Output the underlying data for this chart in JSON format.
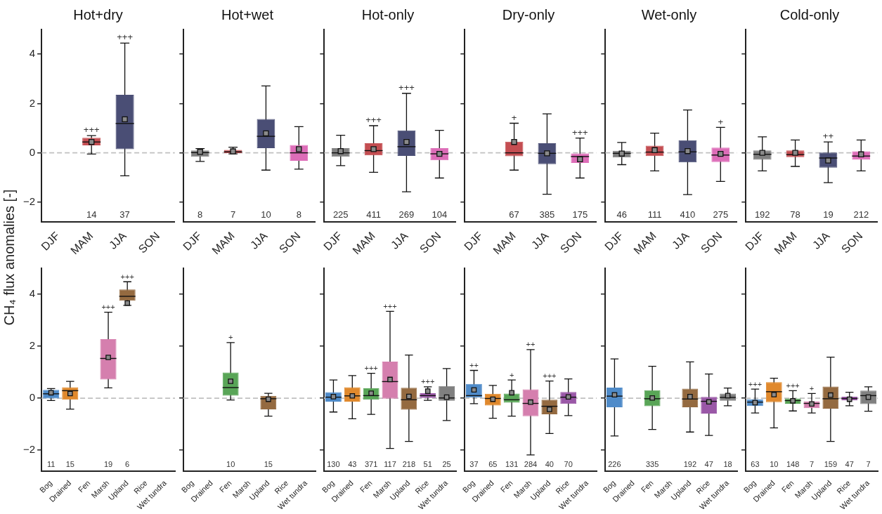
{
  "chart_data": [
    {
      "type": "box",
      "title": "Hot+dry",
      "ylabel": "CH₄ flux anomalies [-]",
      "categories": [
        "DJF",
        "MAM",
        "JJA",
        "SON"
      ],
      "colors": [
        null,
        "#c44e52",
        "#4a4e75",
        null
      ],
      "boxes": [
        null,
        {
          "low": -0.05,
          "q1": 0.3,
          "median": 0.44,
          "q3": 0.61,
          "high": 0.7,
          "mean": 0.44
        },
        {
          "low": -0.93,
          "q1": 0.15,
          "median": 1.19,
          "q3": 2.35,
          "high": 4.45,
          "mean": 1.36
        },
        null
      ],
      "value_labels": [
        null,
        "14",
        "37",
        null
      ],
      "marker": "square",
      "ylim": [
        -2.8,
        5
      ],
      "yticks": [
        -2,
        0,
        2,
        4
      ],
      "grid": false,
      "ref_lines": [
        {
          "axis": "y",
          "value": 0,
          "color": "#c0c0c0",
          "line_style": "dashed"
        }
      ],
      "annotations": [
        {
          "text": "+++",
          "x": "MAM",
          "y": 0.7
        },
        {
          "text": "+++",
          "x": "JJA",
          "y": 4.45
        }
      ]
    },
    {
      "type": "box",
      "title": "Hot+wet",
      "categories": [
        "DJF",
        "MAM",
        "JJA",
        "SON"
      ],
      "colors": [
        "#808080",
        "#c44e52",
        "#4a4e75",
        "#dd6db8"
      ],
      "boxes": [
        {
          "low": -0.35,
          "q1": -0.16,
          "median": 0.01,
          "q3": 0.1,
          "high": 0.17,
          "mean": 0.04
        },
        {
          "low": -0.04,
          "q1": -0.01,
          "median": 0.04,
          "q3": 0.12,
          "high": 0.23,
          "mean": 0.06
        },
        {
          "low": -0.7,
          "q1": 0.19,
          "median": 0.67,
          "q3": 1.37,
          "high": 2.71,
          "mean": 0.79
        },
        {
          "low": -0.66,
          "q1": -0.32,
          "median": 0,
          "q3": 0.32,
          "high": 1.06,
          "mean": 0.15
        }
      ],
      "value_labels": [
        "8",
        "7",
        "10",
        "8"
      ],
      "marker": "square",
      "ylim": [
        -2.8,
        5
      ],
      "yticks": [
        -2,
        0,
        2,
        4
      ],
      "grid": false,
      "tick_labels": "x",
      "ref_lines": [
        {
          "axis": "y",
          "value": 0,
          "color": "#c0c0c0",
          "line_style": "dashed"
        }
      ]
    },
    {
      "type": "box",
      "title": "Hot-only",
      "categories": [
        "DJF",
        "MAM",
        "JJA",
        "SON"
      ],
      "colors": [
        "#808080",
        "#c44e52",
        "#4a4e75",
        "#dd6db8"
      ],
      "boxes": [
        {
          "low": -0.52,
          "q1": -0.16,
          "median": 0,
          "q3": 0.19,
          "high": 0.71,
          "mean": 0.07
        },
        {
          "low": -0.79,
          "q1": -0.1,
          "median": 0.09,
          "q3": 0.39,
          "high": 1.1,
          "mean": 0.15
        },
        {
          "low": -1.58,
          "q1": -0.12,
          "median": 0.25,
          "q3": 0.91,
          "high": 2.41,
          "mean": 0.44
        },
        {
          "low": -1.02,
          "q1": -0.3,
          "median": -0.04,
          "q3": 0.19,
          "high": 0.91,
          "mean": -0.04
        }
      ],
      "value_labels": [
        "225",
        "411",
        "269",
        "104"
      ],
      "marker": "square",
      "ylim": [
        -2.8,
        5
      ],
      "yticks": [
        -2,
        0,
        2,
        4
      ],
      "grid": false,
      "tick_labels": "x",
      "ref_lines": [
        {
          "axis": "y",
          "value": 0,
          "color": "#c0c0c0",
          "line_style": "dashed"
        }
      ],
      "annotations": [
        {
          "text": "+++",
          "x": "MAM",
          "y": 1.1
        },
        {
          "text": "+++",
          "x": "JJA",
          "y": 2.41
        }
      ]
    },
    {
      "type": "box",
      "title": "Dry-only",
      "categories": [
        "DJF",
        "MAM",
        "JJA",
        "SON"
      ],
      "colors": [
        null,
        "#c44e52",
        "#4a4e75",
        "#dd6db8"
      ],
      "boxes": [
        null,
        {
          "low": -0.7,
          "q1": -0.14,
          "median": 0,
          "q3": 0.45,
          "high": 1.2,
          "mean": 0.44
        },
        {
          "low": -1.68,
          "q1": -0.46,
          "median": -0.02,
          "q3": 0.39,
          "high": 1.58,
          "mean": -0.02
        },
        {
          "low": -1.02,
          "q1": -0.41,
          "median": -0.15,
          "q3": 0,
          "high": 0.6,
          "mean": -0.26
        }
      ],
      "value_labels": [
        null,
        "67",
        "385",
        "175"
      ],
      "marker": "square",
      "ylim": [
        -2.8,
        5
      ],
      "yticks": [
        -2,
        0,
        2,
        4
      ],
      "grid": false,
      "tick_labels": "x",
      "ref_lines": [
        {
          "axis": "y",
          "value": 0,
          "color": "#c0c0c0",
          "line_style": "dashed"
        }
      ],
      "annotations": [
        {
          "text": "+",
          "x": "MAM",
          "y": 1.2
        },
        {
          "text": "+++",
          "x": "SON",
          "y": 0.6
        }
      ]
    },
    {
      "type": "box",
      "title": "Wet-only",
      "categories": [
        "DJF",
        "MAM",
        "JJA",
        "SON"
      ],
      "colors": [
        "#808080",
        "#c44e52",
        "#4a4e75",
        "#dd6db8"
      ],
      "boxes": [
        {
          "low": -0.48,
          "q1": -0.19,
          "median": -0.02,
          "q3": 0.08,
          "high": 0.42,
          "mean": -0.03
        },
        {
          "low": -0.73,
          "q1": -0.13,
          "median": 0.03,
          "q3": 0.29,
          "high": 0.8,
          "mean": 0.11
        },
        {
          "low": -1.69,
          "q1": -0.39,
          "median": 0.04,
          "q3": 0.51,
          "high": 1.74,
          "mean": 0.07
        },
        {
          "low": -1.16,
          "q1": -0.37,
          "median": -0.09,
          "q3": 0.21,
          "high": 1.03,
          "mean": -0.04
        }
      ],
      "value_labels": [
        "46",
        "111",
        "410",
        "275"
      ],
      "marker": "square",
      "ylim": [
        -2.8,
        5
      ],
      "yticks": [
        -2,
        0,
        2,
        4
      ],
      "grid": false,
      "tick_labels": "x",
      "ref_lines": [
        {
          "axis": "y",
          "value": 0,
          "color": "#c0c0c0",
          "line_style": "dashed"
        }
      ],
      "annotations": [
        {
          "text": "+",
          "x": "SON",
          "y": 1.03
        }
      ]
    },
    {
      "type": "box",
      "title": "Cold-only",
      "categories": [
        "DJF",
        "MAM",
        "JJA",
        "SON"
      ],
      "colors": [
        "#808080",
        "#c44e52",
        "#4a4e75",
        "#dd6db8"
      ],
      "boxes": [
        {
          "low": -0.73,
          "q1": -0.28,
          "median": -0.06,
          "q3": 0.1,
          "high": 0.65,
          "mean": 0
        },
        {
          "low": -0.55,
          "q1": -0.17,
          "median": -0.07,
          "q3": 0.1,
          "high": 0.52,
          "mean": 0
        },
        {
          "low": -1.21,
          "q1": -0.6,
          "median": -0.21,
          "q3": 0.01,
          "high": 0.44,
          "mean": -0.31
        },
        {
          "low": -0.73,
          "q1": -0.28,
          "median": -0.13,
          "q3": 0.06,
          "high": 0.52,
          "mean": -0.06
        }
      ],
      "value_labels": [
        "192",
        "78",
        "19",
        "212"
      ],
      "marker": "square",
      "ylim": [
        -2.8,
        5
      ],
      "yticks": [
        -2,
        0,
        2,
        4
      ],
      "grid": false,
      "tick_labels": "x",
      "ref_lines": [
        {
          "axis": "y",
          "value": 0,
          "color": "#c0c0c0",
          "line_style": "dashed"
        }
      ],
      "annotations": [
        {
          "text": "++",
          "x": "JJA",
          "y": 0.44
        }
      ]
    },
    {
      "type": "box",
      "categories": [
        "Bog",
        "Drained",
        "Fen",
        "Marsh",
        "Upland",
        "Rice",
        "Wet tundra"
      ],
      "colors": [
        "#4f8bc9",
        "#e0892d",
        null,
        "#d57fae",
        "#946a40",
        null,
        null
      ],
      "boxes": [
        {
          "low": -0.09,
          "q1": -0.01,
          "median": 0.17,
          "q3": 0.32,
          "high": 0.37,
          "mean": 0.21
        },
        {
          "low": -0.42,
          "q1": -0.06,
          "median": 0.29,
          "q3": 0.42,
          "high": 0.65,
          "mean": 0.18
        },
        null,
        {
          "low": 0.4,
          "q1": 0.72,
          "median": 1.53,
          "q3": 2.27,
          "high": 3.31,
          "mean": 1.57
        },
        {
          "low": 3.57,
          "q1": 3.75,
          "median": 3.92,
          "q3": 4.18,
          "high": 4.48,
          "mean": 3.66
        },
        null,
        null
      ],
      "value_labels": [
        "11",
        "15",
        null,
        "19",
        "6",
        null,
        null
      ],
      "marker": "square",
      "ylim": [
        -2.8,
        5
      ],
      "yticks": [
        -2,
        0,
        2,
        4
      ],
      "grid": false,
      "ref_lines": [
        {
          "axis": "y",
          "value": 0,
          "color": "#c0c0c0",
          "line_style": "dashed"
        }
      ],
      "annotations": [
        {
          "text": "+++",
          "x": "Marsh",
          "y": 3.31
        },
        {
          "text": "+++",
          "x": "Upland",
          "y": 4.48
        }
      ]
    },
    {
      "type": "box",
      "categories": [
        "Bog",
        "Drained",
        "Fen",
        "Marsh",
        "Upland",
        "Rice",
        "Wet tundra"
      ],
      "colors": [
        null,
        null,
        "#59a557",
        null,
        "#946a40",
        null,
        null
      ],
      "boxes": [
        null,
        null,
        {
          "low": -0.07,
          "q1": 0.1,
          "median": 0.41,
          "q3": 0.99,
          "high": 2.14,
          "mean": 0.65
        },
        null,
        {
          "low": -0.69,
          "q1": -0.43,
          "median": -0.02,
          "q3": 0.09,
          "high": 0.19,
          "mean": -0.04
        },
        null,
        null
      ],
      "value_labels": [
        null,
        null,
        "10",
        null,
        "15",
        null,
        null
      ],
      "marker": "square",
      "ylim": [
        -2.8,
        5
      ],
      "yticks": [
        -2,
        0,
        2,
        4
      ],
      "grid": false,
      "tick_labels": "x",
      "ref_lines": [
        {
          "axis": "y",
          "value": 0,
          "color": "#c0c0c0",
          "line_style": "dashed"
        }
      ],
      "annotations": [
        {
          "text": "+",
          "x": "Fen",
          "y": 2.14
        }
      ]
    },
    {
      "type": "box",
      "categories": [
        "Bog",
        "Drained",
        "Fen",
        "Marsh",
        "Upland",
        "Rice",
        "Wet tundra"
      ],
      "colors": [
        "#4f8bc9",
        "#e0892d",
        "#59a557",
        "#d57fae",
        "#946a40",
        "#9a58a7",
        "#808080"
      ],
      "boxes": [
        {
          "low": -0.53,
          "q1": -0.13,
          "median": 0.04,
          "q3": 0.23,
          "high": 0.7,
          "mean": 0.06
        },
        {
          "low": -0.79,
          "q1": -0.13,
          "median": 0.09,
          "q3": 0.42,
          "high": 0.87,
          "mean": 0.09
        },
        {
          "low": -0.62,
          "q1": -0.06,
          "median": 0.1,
          "q3": 0.38,
          "high": 0.96,
          "mean": 0.19
        },
        {
          "low": -1.93,
          "q1": -0.02,
          "median": 0.64,
          "q3": 1.41,
          "high": 3.34,
          "mean": 0.72
        },
        {
          "low": -1.66,
          "q1": -0.44,
          "median": -0.06,
          "q3": 0.4,
          "high": 1.66,
          "mean": 0.07
        },
        {
          "low": -0.08,
          "q1": 0.01,
          "median": 0.1,
          "q3": 0.19,
          "high": 0.44,
          "mean": 0.27
        },
        {
          "low": -0.86,
          "q1": -0.1,
          "median": 0.01,
          "q3": 0.47,
          "high": 1.14,
          "mean": 0.04
        }
      ],
      "value_labels": [
        "130",
        "43",
        "371",
        "117",
        "218",
        "51",
        "25"
      ],
      "marker": "square",
      "ylim": [
        -2.8,
        5
      ],
      "yticks": [
        -2,
        0,
        2,
        4
      ],
      "grid": false,
      "tick_labels": "x",
      "ref_lines": [
        {
          "axis": "y",
          "value": 0,
          "color": "#c0c0c0",
          "line_style": "dashed"
        }
      ],
      "annotations": [
        {
          "text": "+++",
          "x": "Fen",
          "y": 0.96
        },
        {
          "text": "+++",
          "x": "Marsh",
          "y": 3.34
        },
        {
          "text": "+++",
          "x": "Rice",
          "y": 0.44
        }
      ]
    },
    {
      "type": "box",
      "categories": [
        "Bog",
        "Drained",
        "Fen",
        "Marsh",
        "Upland",
        "Rice",
        "Wet tundra"
      ],
      "colors": [
        "#4f8bc9",
        "#e0892d",
        "#59a557",
        "#d57fae",
        "#946a40",
        "#9a58a7",
        null
      ],
      "boxes": [
        {
          "low": -0.21,
          "q1": 0,
          "median": 0.1,
          "q3": 0.55,
          "high": 1.07,
          "mean": 0.32
        },
        {
          "low": -0.77,
          "q1": -0.28,
          "median": -0.01,
          "q3": 0.17,
          "high": 0.49,
          "mean": -0.04
        },
        {
          "low": -0.69,
          "q1": -0.17,
          "median": -0.06,
          "q3": 0.18,
          "high": 0.7,
          "mean": 0.21
        },
        {
          "low": -2.18,
          "q1": -0.69,
          "median": -0.2,
          "q3": 0.34,
          "high": 1.87,
          "mean": -0.15
        },
        {
          "low": -1.36,
          "q1": -0.62,
          "median": -0.31,
          "q3": -0.06,
          "high": 0.66,
          "mean": -0.43
        },
        {
          "low": -0.67,
          "q1": -0.22,
          "median": 0.04,
          "q3": 0.24,
          "high": 0.74,
          "mean": 0.05
        },
        null
      ],
      "value_labels": [
        "37",
        "65",
        "131",
        "284",
        "40",
        "70",
        null
      ],
      "marker": "square",
      "ylim": [
        -2.8,
        5
      ],
      "yticks": [
        -2,
        0,
        2,
        4
      ],
      "grid": false,
      "tick_labels": "x",
      "ref_lines": [
        {
          "axis": "y",
          "value": 0,
          "color": "#c0c0c0",
          "line_style": "dashed"
        }
      ],
      "annotations": [
        {
          "text": "++",
          "x": "Bog",
          "y": 1.07
        },
        {
          "text": "+",
          "x": "Fen",
          "y": 0.7
        },
        {
          "text": "++",
          "x": "Marsh",
          "y": 1.87
        },
        {
          "text": "+++",
          "x": "Upland",
          "y": 0.66
        }
      ]
    },
    {
      "type": "box",
      "categories": [
        "Bog",
        "Drained",
        "Fen",
        "Marsh",
        "Upland",
        "Rice",
        "Wet tundra"
      ],
      "colors": [
        "#4f8bc9",
        null,
        "#59a557",
        null,
        "#946a40",
        "#9a58a7",
        "#808080"
      ],
      "boxes": [
        {
          "low": -1.45,
          "q1": -0.35,
          "median": 0.08,
          "q3": 0.41,
          "high": 1.51,
          "mean": 0.13
        },
        null,
        {
          "low": -1.2,
          "q1": -0.31,
          "median": -0.02,
          "q3": 0.31,
          "high": 1.23,
          "mean": 0.01
        },
        null,
        {
          "low": -1.3,
          "q1": -0.35,
          "median": -0.03,
          "q3": 0.37,
          "high": 1.4,
          "mean": 0.06
        },
        {
          "low": -1.43,
          "q1": -0.59,
          "median": -0.12,
          "q3": 0.05,
          "high": 0.93,
          "mean": -0.14
        },
        {
          "low": -0.29,
          "q1": -0.1,
          "median": 0.03,
          "q3": 0.18,
          "high": 0.39,
          "mean": 0.1
        }
      ],
      "value_labels": [
        "226",
        null,
        "335",
        null,
        "192",
        "47",
        "18"
      ],
      "marker": "square",
      "ylim": [
        -2.8,
        5
      ],
      "yticks": [
        -2,
        0,
        2,
        4
      ],
      "grid": false,
      "tick_labels": "x",
      "ref_lines": [
        {
          "axis": "y",
          "value": 0,
          "color": "#c0c0c0",
          "line_style": "dashed"
        }
      ]
    },
    {
      "type": "box",
      "categories": [
        "Bog",
        "Drained",
        "Fen",
        "Marsh",
        "Upland",
        "Rice",
        "Wet tundra"
      ],
      "colors": [
        "#4f8bc9",
        "#e0892d",
        "#59a557",
        "#d57fae",
        "#946a40",
        "#9a58a7",
        "#808080"
      ],
      "boxes": [
        {
          "low": -0.57,
          "q1": -0.3,
          "median": -0.15,
          "q3": -0.04,
          "high": 0.35,
          "mean": -0.17
        },
        {
          "low": -1.14,
          "q1": -0.15,
          "median": 0.25,
          "q3": 0.62,
          "high": 0.77,
          "mean": 0.14
        },
        {
          "low": -0.49,
          "q1": -0.21,
          "median": -0.09,
          "q3": -0.01,
          "high": 0.29,
          "mean": -0.1
        },
        {
          "low": -0.57,
          "q1": -0.38,
          "median": -0.2,
          "q3": -0.12,
          "high": 0.18,
          "mean": -0.22
        },
        {
          "low": -1.66,
          "q1": -0.4,
          "median": -0.02,
          "q3": 0.45,
          "high": 1.58,
          "mean": 0.12
        },
        {
          "low": -0.29,
          "q1": -0.08,
          "median": -0.01,
          "q3": 0.06,
          "high": 0.23,
          "mean": -0.04
        },
        {
          "low": -0.5,
          "q1": -0.23,
          "median": 0.1,
          "q3": 0.29,
          "high": 0.44,
          "mean": 0.04
        }
      ],
      "value_labels": [
        "63",
        "10",
        "148",
        "7",
        "159",
        "47",
        "7"
      ],
      "marker": "square",
      "ylim": [
        -2.8,
        5
      ],
      "yticks": [
        -2,
        0,
        2,
        4
      ],
      "grid": false,
      "tick_labels": "x",
      "ref_lines": [
        {
          "axis": "y",
          "value": 0,
          "color": "#c0c0c0",
          "line_style": "dashed"
        }
      ],
      "annotations": [
        {
          "text": "+++",
          "x": "Bog",
          "y": 0.35
        },
        {
          "text": "+++",
          "x": "Fen",
          "y": 0.29
        },
        {
          "text": "+",
          "x": "Marsh",
          "y": 0.18
        }
      ]
    }
  ]
}
